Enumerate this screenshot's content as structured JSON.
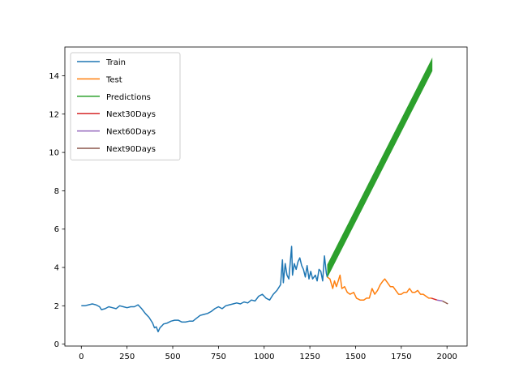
{
  "chart_data": {
    "type": "line",
    "title": "",
    "xlabel": "",
    "ylabel": "",
    "xlim": [
      -90,
      2110
    ],
    "ylim": [
      -0.1,
      15.5
    ],
    "x_ticks": [
      0,
      250,
      500,
      750,
      1000,
      1250,
      1500,
      1750,
      2000
    ],
    "y_ticks": [
      0,
      2,
      4,
      6,
      8,
      10,
      12,
      14
    ],
    "grid": false,
    "legend_position": "top-left",
    "series": [
      {
        "name": "Train",
        "color": "#1f77b4",
        "points": [
          [
            0,
            2.0
          ],
          [
            20,
            2.0
          ],
          [
            40,
            2.05
          ],
          [
            60,
            2.1
          ],
          [
            80,
            2.05
          ],
          [
            100,
            1.95
          ],
          [
            110,
            1.8
          ],
          [
            130,
            1.85
          ],
          [
            150,
            1.95
          ],
          [
            170,
            1.9
          ],
          [
            190,
            1.85
          ],
          [
            210,
            2.0
          ],
          [
            230,
            1.95
          ],
          [
            250,
            1.9
          ],
          [
            270,
            1.95
          ],
          [
            290,
            1.95
          ],
          [
            310,
            2.05
          ],
          [
            330,
            1.85
          ],
          [
            350,
            1.6
          ],
          [
            370,
            1.4
          ],
          [
            380,
            1.25
          ],
          [
            390,
            1.1
          ],
          [
            400,
            0.85
          ],
          [
            410,
            0.9
          ],
          [
            420,
            0.65
          ],
          [
            430,
            0.85
          ],
          [
            440,
            0.95
          ],
          [
            450,
            1.05
          ],
          [
            470,
            1.1
          ],
          [
            490,
            1.2
          ],
          [
            510,
            1.25
          ],
          [
            530,
            1.25
          ],
          [
            550,
            1.15
          ],
          [
            570,
            1.15
          ],
          [
            590,
            1.2
          ],
          [
            610,
            1.2
          ],
          [
            630,
            1.35
          ],
          [
            650,
            1.5
          ],
          [
            670,
            1.55
          ],
          [
            690,
            1.6
          ],
          [
            710,
            1.7
          ],
          [
            730,
            1.85
          ],
          [
            750,
            1.95
          ],
          [
            770,
            1.85
          ],
          [
            790,
            2.0
          ],
          [
            810,
            2.05
          ],
          [
            830,
            2.1
          ],
          [
            850,
            2.15
          ],
          [
            870,
            2.1
          ],
          [
            890,
            2.2
          ],
          [
            910,
            2.15
          ],
          [
            930,
            2.3
          ],
          [
            950,
            2.25
          ],
          [
            970,
            2.5
          ],
          [
            990,
            2.6
          ],
          [
            1010,
            2.4
          ],
          [
            1030,
            2.3
          ],
          [
            1050,
            2.6
          ],
          [
            1070,
            2.8
          ],
          [
            1090,
            3.1
          ],
          [
            1100,
            4.4
          ],
          [
            1105,
            3.2
          ],
          [
            1115,
            4.2
          ],
          [
            1125,
            3.6
          ],
          [
            1135,
            3.4
          ],
          [
            1150,
            5.1
          ],
          [
            1155,
            3.6
          ],
          [
            1165,
            4.2
          ],
          [
            1175,
            3.9
          ],
          [
            1185,
            4.3
          ],
          [
            1195,
            4.5
          ],
          [
            1205,
            4.1
          ],
          [
            1215,
            3.9
          ],
          [
            1225,
            3.5
          ],
          [
            1235,
            4.1
          ],
          [
            1245,
            3.4
          ],
          [
            1255,
            3.8
          ],
          [
            1265,
            3.4
          ],
          [
            1280,
            3.6
          ],
          [
            1290,
            3.3
          ],
          [
            1300,
            3.9
          ],
          [
            1310,
            3.8
          ],
          [
            1320,
            3.3
          ],
          [
            1330,
            4.6
          ],
          [
            1340,
            3.7
          ],
          [
            1345,
            3.5
          ]
        ]
      },
      {
        "name": "Test",
        "color": "#ff7f0e",
        "points": [
          [
            1345,
            3.5
          ],
          [
            1360,
            3.4
          ],
          [
            1375,
            2.9
          ],
          [
            1385,
            3.3
          ],
          [
            1395,
            3.0
          ],
          [
            1405,
            3.3
          ],
          [
            1415,
            3.6
          ],
          [
            1425,
            2.9
          ],
          [
            1440,
            3.0
          ],
          [
            1455,
            2.7
          ],
          [
            1470,
            2.6
          ],
          [
            1490,
            2.7
          ],
          [
            1505,
            2.4
          ],
          [
            1525,
            2.3
          ],
          [
            1545,
            2.3
          ],
          [
            1560,
            2.4
          ],
          [
            1575,
            2.4
          ],
          [
            1590,
            2.9
          ],
          [
            1605,
            2.6
          ],
          [
            1620,
            2.8
          ],
          [
            1635,
            3.1
          ],
          [
            1650,
            3.3
          ],
          [
            1660,
            3.4
          ],
          [
            1675,
            3.2
          ],
          [
            1690,
            3.0
          ],
          [
            1705,
            3.0
          ],
          [
            1720,
            2.8
          ],
          [
            1735,
            2.6
          ],
          [
            1750,
            2.6
          ],
          [
            1765,
            2.7
          ],
          [
            1780,
            2.7
          ],
          [
            1795,
            2.9
          ],
          [
            1810,
            2.7
          ],
          [
            1825,
            2.7
          ],
          [
            1840,
            2.8
          ],
          [
            1855,
            2.6
          ],
          [
            1870,
            2.6
          ],
          [
            1885,
            2.5
          ],
          [
            1900,
            2.4
          ],
          [
            1915,
            2.4
          ]
        ]
      },
      {
        "name": "Predictions",
        "color": "#2ca02c",
        "band": true,
        "points": [
          [
            1345,
            3.8
          ],
          [
            1920,
            14.6
          ]
        ],
        "band_width": 0.35
      },
      {
        "name": "Next30Days",
        "color": "#d62728",
        "points": [
          [
            1915,
            2.4
          ],
          [
            1945,
            2.3
          ]
        ]
      },
      {
        "name": "Next60Days",
        "color": "#9467bd",
        "points": [
          [
            1945,
            2.3
          ],
          [
            1975,
            2.25
          ]
        ]
      },
      {
        "name": "Next90Days",
        "color": "#8c564b",
        "points": [
          [
            1975,
            2.25
          ],
          [
            2005,
            2.1
          ]
        ]
      }
    ]
  }
}
